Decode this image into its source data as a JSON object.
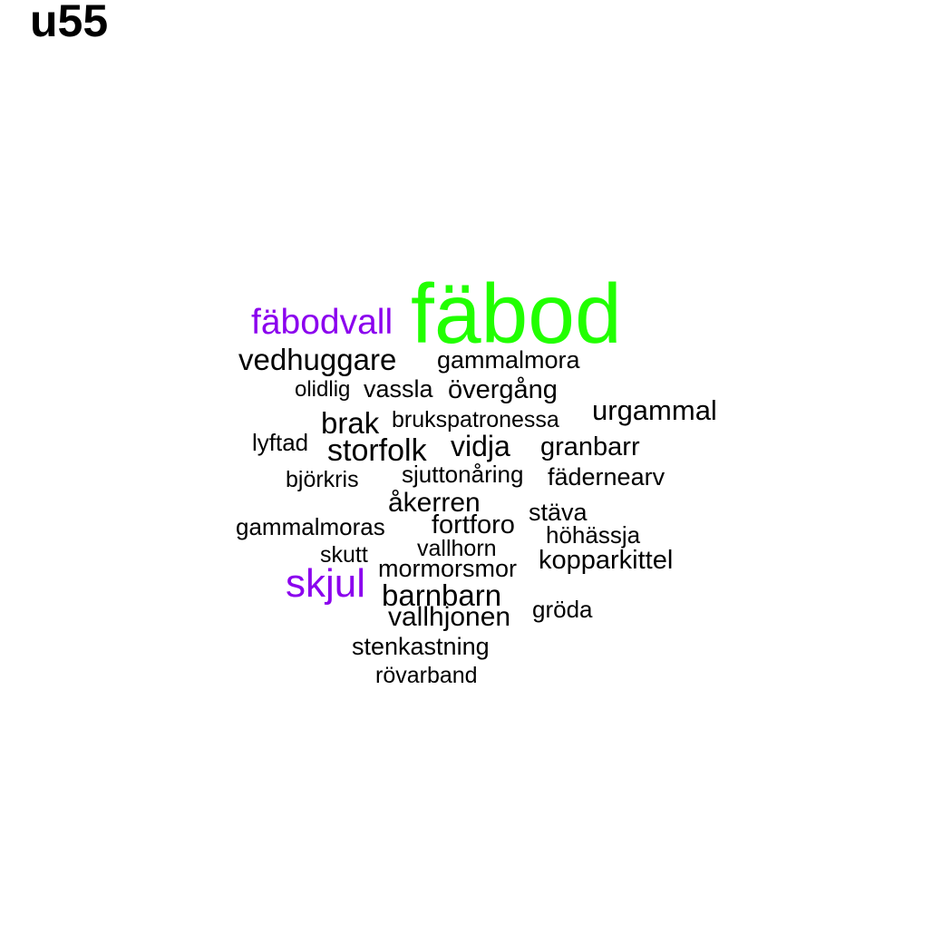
{
  "title": "u55",
  "colors": {
    "primary": "#21ff00",
    "secondary": "#8b00ee",
    "default": "#000000"
  },
  "words": [
    {
      "text": "fäbod",
      "color": "#21ff00"
    },
    {
      "text": "fäbodvall",
      "color": "#8b00ee"
    },
    {
      "text": "vedhuggare",
      "color": "#000000"
    },
    {
      "text": "gammalmora",
      "color": "#000000"
    },
    {
      "text": "olidlig",
      "color": "#000000"
    },
    {
      "text": "vassla",
      "color": "#000000"
    },
    {
      "text": "övergång",
      "color": "#000000"
    },
    {
      "text": "urgammal",
      "color": "#000000"
    },
    {
      "text": "brak",
      "color": "#000000"
    },
    {
      "text": "brukspatronessa",
      "color": "#000000"
    },
    {
      "text": "lyftad",
      "color": "#000000"
    },
    {
      "text": "storfolk",
      "color": "#000000"
    },
    {
      "text": "vidja",
      "color": "#000000"
    },
    {
      "text": "granbarr",
      "color": "#000000"
    },
    {
      "text": "björkris",
      "color": "#000000"
    },
    {
      "text": "sjuttonåring",
      "color": "#000000"
    },
    {
      "text": "fädernearv",
      "color": "#000000"
    },
    {
      "text": "åkerren",
      "color": "#000000"
    },
    {
      "text": "stäva",
      "color": "#000000"
    },
    {
      "text": "gammalmoras",
      "color": "#000000"
    },
    {
      "text": "fortforo",
      "color": "#000000"
    },
    {
      "text": "höhässja",
      "color": "#000000"
    },
    {
      "text": "skutt",
      "color": "#000000"
    },
    {
      "text": "vallhorn",
      "color": "#000000"
    },
    {
      "text": "kopparkittel",
      "color": "#000000"
    },
    {
      "text": "mormorsmor",
      "color": "#000000"
    },
    {
      "text": "skjul",
      "color": "#8b00ee"
    },
    {
      "text": "barnbarn",
      "color": "#000000"
    },
    {
      "text": "gröda",
      "color": "#000000"
    },
    {
      "text": "vallhjonen",
      "color": "#000000"
    },
    {
      "text": "stenkastning",
      "color": "#000000"
    },
    {
      "text": "rövarband",
      "color": "#000000"
    }
  ]
}
